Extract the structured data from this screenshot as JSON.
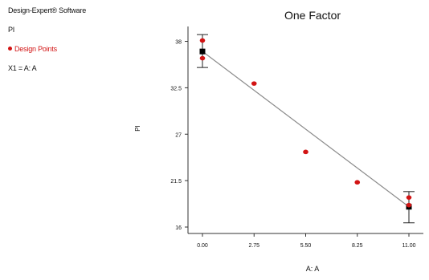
{
  "sidebar": {
    "software": "Design-Expert® Software",
    "response": "PI",
    "design_points_label": "Design Points",
    "factor_label": "X1 = A: A"
  },
  "colors": {
    "design_point": "#d21414",
    "prediction_line": "#8a8a8a",
    "mean_marker": "#000000",
    "axis": "#333333"
  },
  "chart_data": {
    "type": "scatter",
    "title": "One Factor",
    "xlabel": "A: A",
    "ylabel": "PI",
    "xlim": [
      0,
      11
    ],
    "ylim": [
      16,
      39
    ],
    "xticks": [
      "0.00",
      "2.75",
      "5.50",
      "8.25",
      "11.00"
    ],
    "yticks": [
      "16",
      "21.5",
      "27",
      "32.5",
      "38"
    ],
    "design_points": {
      "x": [
        0,
        0,
        2.75,
        5.5,
        8.25,
        11,
        11
      ],
      "y": [
        38.1,
        36.0,
        33.0,
        24.9,
        21.3,
        19.5,
        18.6
      ]
    },
    "prediction_line": {
      "x": [
        0,
        11
      ],
      "y": [
        36.8,
        18.4
      ]
    },
    "error_bars": [
      {
        "x": 0,
        "mean": 36.8,
        "low": 34.9,
        "high": 38.8
      },
      {
        "x": 11,
        "mean": 18.4,
        "low": 16.5,
        "high": 20.2
      }
    ],
    "grid": false,
    "legend": "left-panel"
  }
}
